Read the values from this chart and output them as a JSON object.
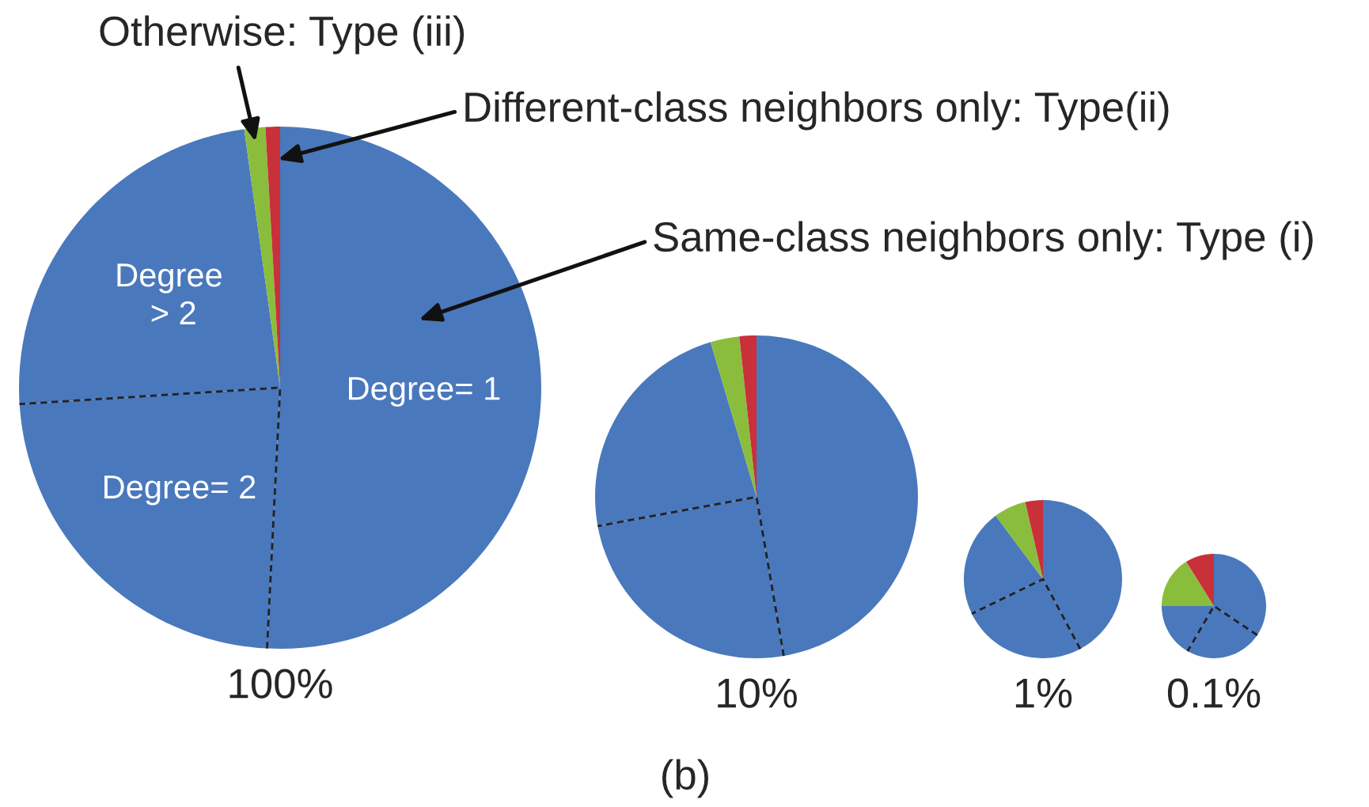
{
  "chart_data": [
    {
      "type": "pie",
      "title": "100%",
      "categories": [
        "Degree= 1",
        "Degree= 2",
        "Degree\n > 2",
        null,
        null
      ],
      "values": [
        50.8,
        23.2,
        23.8,
        1.3,
        0.9
      ],
      "colors": [
        "#4a78bc",
        "#4a78bc",
        "#4a78bc",
        "#8bbd3c",
        "#c8303a"
      ],
      "annotations": [
        "Otherwise: Type (iii)",
        "Different-class neighbors only: Type(ii)",
        "Same-class neighbors only: Type (i)",
        "(b)"
      ]
    },
    {
      "type": "pie",
      "title": "10%",
      "categories": [
        null,
        null,
        null,
        null,
        null
      ],
      "values": [
        47.3,
        24.8,
        23.3,
        2.9,
        1.7
      ],
      "colors": [
        "#4a78bc",
        "#4a78bc",
        "#4a78bc",
        "#8bbd3c",
        "#c8303a"
      ]
    },
    {
      "type": "pie",
      "title": "1%",
      "categories": [
        null,
        null,
        null,
        null,
        null
      ],
      "values": [
        42.2,
        25.6,
        22.0,
        6.6,
        3.6
      ],
      "colors": [
        "#4a78bc",
        "#4a78bc",
        "#4a78bc",
        "#8bbd3c",
        "#c8303a"
      ]
    },
    {
      "type": "pie",
      "title": "0.1%",
      "categories": [
        null,
        null,
        null,
        null,
        null
      ],
      "values": [
        34.4,
        24.0,
        16.6,
        16.1,
        8.9
      ],
      "colors": [
        "#4a78bc",
        "#4a78bc",
        "#4a78bc",
        "#8bbd3c",
        "#c8303a"
      ]
    }
  ]
}
